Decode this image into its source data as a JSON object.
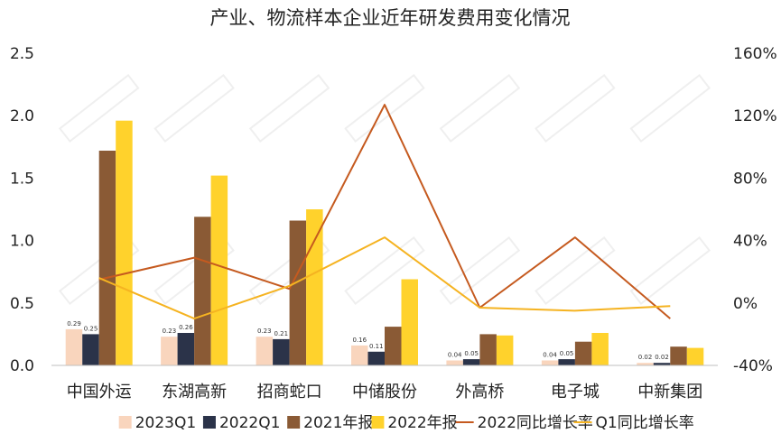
{
  "chart_data": {
    "type": "bar",
    "title": "产业、物流样本企业近年研发费用变化情况",
    "categories": [
      "中国外运",
      "东湖高新",
      "招商蛇口",
      "中储股份",
      "外高桥",
      "电子城",
      "中新集团"
    ],
    "left_axis": {
      "min": 0,
      "max": 2.5,
      "ticks": [
        "0.0",
        "0.5",
        "1.0",
        "1.5",
        "2.0",
        "2.5"
      ]
    },
    "right_axis": {
      "min": -40,
      "max": 160,
      "ticks": [
        "-40%",
        "0%",
        "40%",
        "80%",
        "120%",
        "160%"
      ]
    },
    "bar_series": [
      {
        "name": "2023Q1",
        "color": "#F9D5BD",
        "values": [
          0.29,
          0.23,
          0.23,
          0.16,
          0.04,
          0.04,
          0.02
        ],
        "data_labels": [
          "0.29",
          "0.23",
          "0.23",
          "0.16",
          "0.04",
          "0.04",
          "0.02"
        ]
      },
      {
        "name": "2022Q1",
        "color": "#2B3349",
        "values": [
          0.25,
          0.26,
          0.21,
          0.11,
          0.05,
          0.05,
          0.02
        ],
        "data_labels": [
          "0.25",
          "0.26",
          "0.21",
          "0.11",
          "0.05",
          "0.05",
          "0.02"
        ]
      },
      {
        "name": "2021年报",
        "color": "#8A5A35",
        "values": [
          1.72,
          1.19,
          1.16,
          0.31,
          0.25,
          0.19,
          0.15
        ]
      },
      {
        "name": "2022年报",
        "color": "#FFD22C",
        "values": [
          1.96,
          1.52,
          1.25,
          0.69,
          0.24,
          0.26,
          0.14
        ]
      }
    ],
    "line_series": [
      {
        "name": "2022同比增长率",
        "color": "#C55A1F",
        "axis": "right",
        "values": [
          15,
          29,
          9,
          127,
          -3,
          42,
          -10
        ]
      },
      {
        "name": "Q1同比增长率",
        "color": "#F5B321",
        "axis": "right",
        "values": [
          16,
          -10,
          11,
          42,
          -3,
          -5,
          -2
        ]
      }
    ],
    "legend_position": "bottom",
    "gridlines": false
  }
}
